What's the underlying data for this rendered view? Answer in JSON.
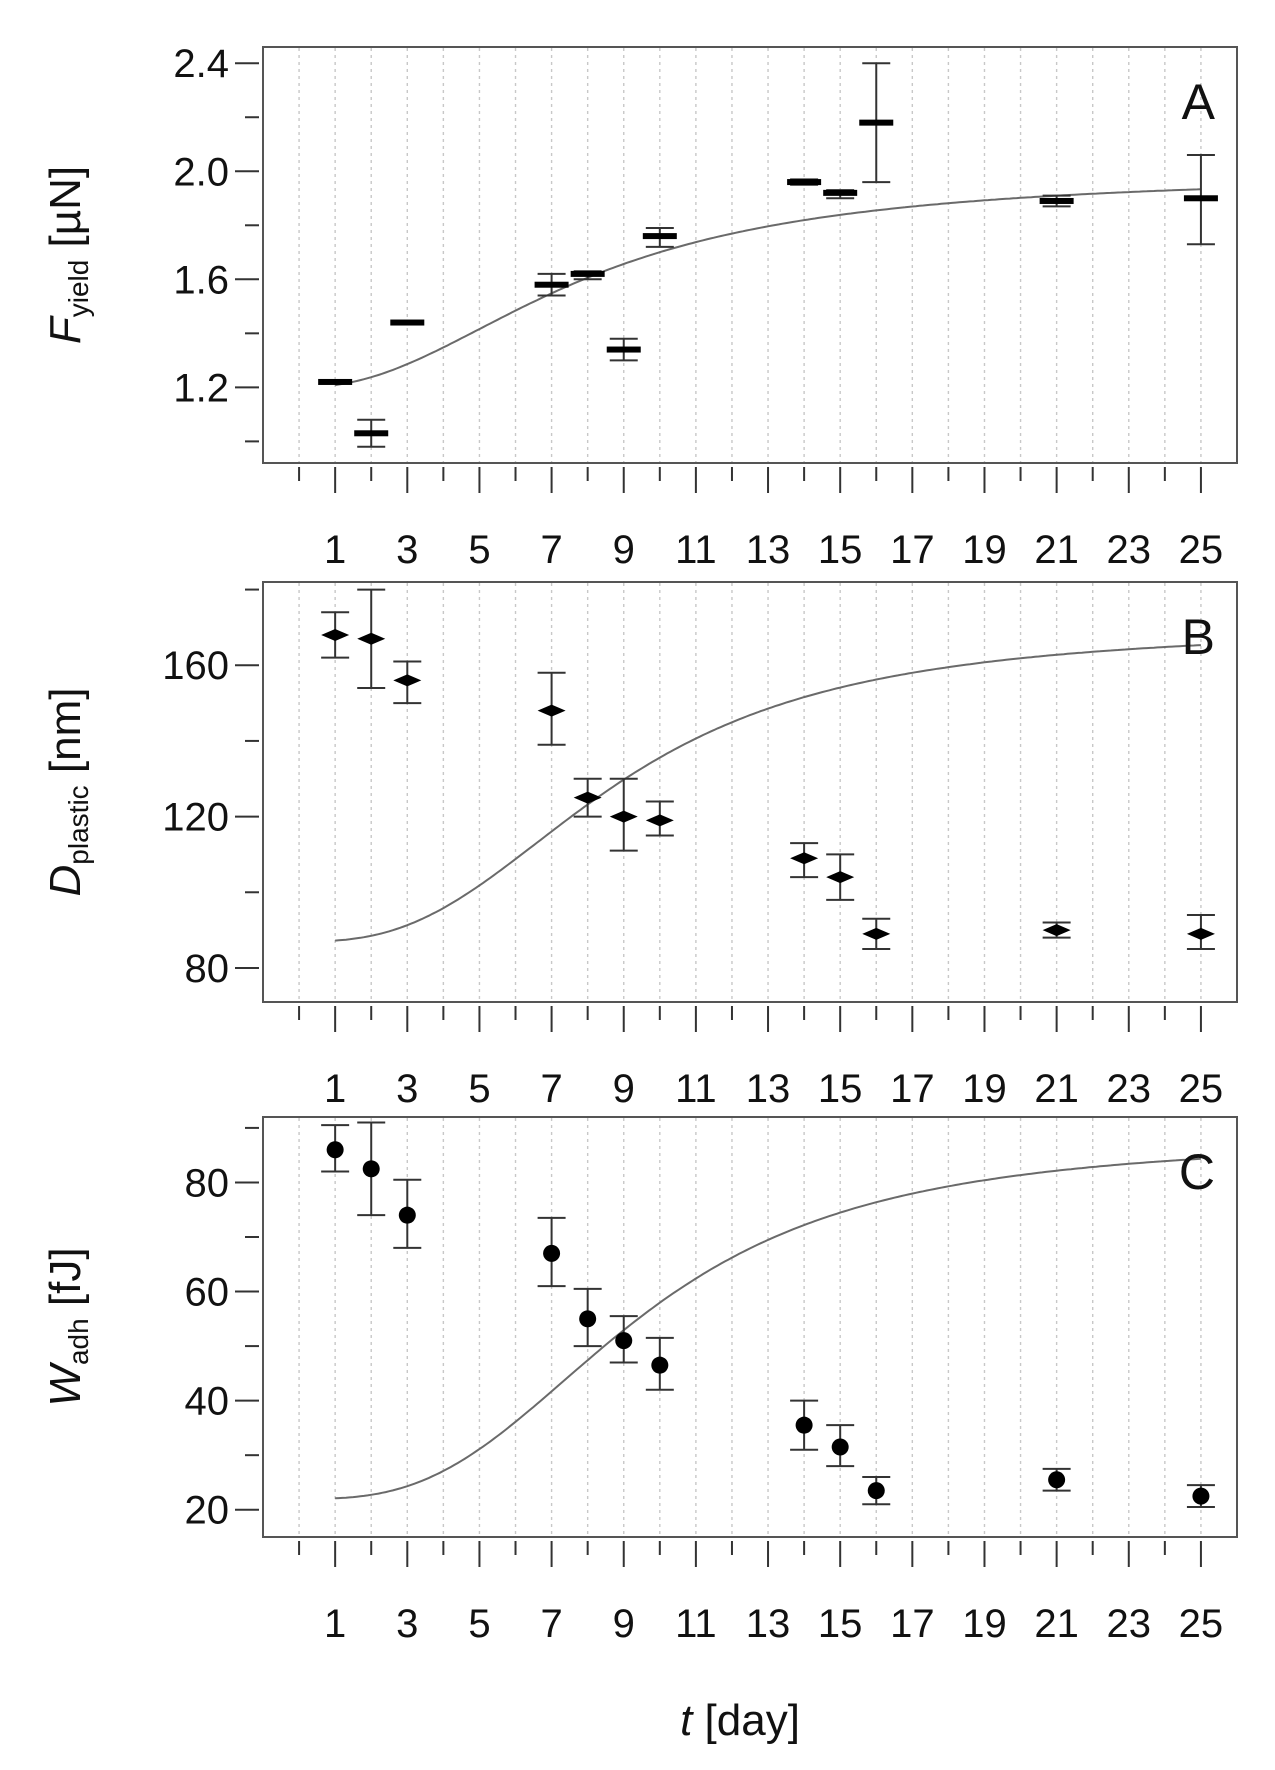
{
  "colors": {
    "grid": "#c8c8c8",
    "frame": "#555555",
    "curve": "#6a6a6a",
    "marker": "#000000"
  },
  "figure": {
    "shared_xlabel_var": "t",
    "shared_xlabel_unit": " [day]"
  },
  "chart_data": [
    {
      "id": "A",
      "type": "scatter",
      "panel_letter": "A",
      "marker": "dash",
      "ylabel_var": "F",
      "ylabel_sub": "yield",
      "ylabel_unit": " [µN]",
      "xlabel": "t [day]",
      "xlim": [
        -1,
        26
      ],
      "ylim": [
        0.92,
        2.46
      ],
      "yticks": [
        1.2,
        1.6,
        2.0,
        2.4
      ],
      "ytick_labels": [
        "1.2",
        "1.6",
        "2.0",
        "2.4"
      ],
      "yminor": [
        1.0,
        1.4,
        1.8,
        2.2
      ],
      "xticks": [
        1,
        3,
        5,
        7,
        9,
        11,
        13,
        15,
        17,
        19,
        21,
        23,
        25
      ],
      "xtick_labels": [
        "1",
        "3",
        "5",
        "7",
        "9",
        "11",
        "13",
        "15",
        "17",
        "19",
        "21",
        "23",
        "25"
      ],
      "x": [
        1,
        2,
        3,
        7,
        8,
        9,
        10,
        14,
        15,
        16,
        21,
        25
      ],
      "y": [
        1.22,
        1.03,
        1.44,
        1.58,
        1.62,
        1.34,
        1.76,
        1.96,
        1.92,
        2.18,
        1.89,
        1.9
      ],
      "err_low": [
        1.22,
        0.98,
        1.44,
        1.54,
        1.6,
        1.3,
        1.72,
        1.95,
        1.9,
        1.96,
        1.87,
        1.73
      ],
      "err_high": [
        1.22,
        1.08,
        1.44,
        1.62,
        1.63,
        1.38,
        1.79,
        1.97,
        1.93,
        2.4,
        1.91,
        2.06
      ],
      "fit": {
        "bottom": 1.2,
        "top": 1.99,
        "x50": 7.8,
        "slope": 2.2
      }
    },
    {
      "id": "B",
      "type": "scatter",
      "panel_letter": "B",
      "marker": "diamond",
      "ylabel_var": "D",
      "ylabel_sub": "plastic",
      "ylabel_unit": " [nm]",
      "xlabel": "t [day]",
      "xlim": [
        -1,
        26
      ],
      "ylim": [
        71,
        182
      ],
      "yticks": [
        80,
        120,
        160
      ],
      "ytick_labels": [
        "80",
        "120",
        "160"
      ],
      "yminor": [
        100,
        140,
        180
      ],
      "xticks": [
        1,
        3,
        5,
        7,
        9,
        11,
        13,
        15,
        17,
        19,
        21,
        23,
        25
      ],
      "xtick_labels": [
        "1",
        "3",
        "5",
        "7",
        "9",
        "11",
        "13",
        "15",
        "17",
        "19",
        "21",
        "23",
        "25"
      ],
      "x": [
        1,
        2,
        3,
        7,
        8,
        9,
        10,
        14,
        15,
        16,
        21,
        25
      ],
      "y": [
        168,
        167,
        156,
        148,
        125,
        120,
        119,
        109,
        104,
        89,
        90,
        89
      ],
      "err_low": [
        162,
        154,
        150,
        139,
        120,
        111,
        115,
        104,
        98,
        85,
        88,
        85
      ],
      "err_high": [
        174,
        180,
        161,
        158,
        130,
        130,
        124,
        113,
        110,
        93,
        92,
        94
      ],
      "fit": {
        "bottom": 87,
        "top": 170,
        "x50": 8.8,
        "slope": 2.7
      }
    },
    {
      "id": "C",
      "type": "scatter",
      "panel_letter": "C",
      "marker": "circle",
      "ylabel_var": "W",
      "ylabel_sub": "adh",
      "ylabel_unit": " [fJ]",
      "xlabel": "t [day]",
      "xlim": [
        -1,
        26
      ],
      "ylim": [
        15,
        92
      ],
      "yticks": [
        20,
        40,
        60,
        80
      ],
      "ytick_labels": [
        "20",
        "40",
        "60",
        "80"
      ],
      "yminor": [
        30,
        50,
        70,
        90
      ],
      "xticks": [
        1,
        3,
        5,
        7,
        9,
        11,
        13,
        15,
        17,
        19,
        21,
        23,
        25
      ],
      "xtick_labels": [
        "1",
        "3",
        "5",
        "7",
        "9",
        "11",
        "13",
        "15",
        "17",
        "19",
        "21",
        "23",
        "25"
      ],
      "x": [
        1,
        2,
        3,
        7,
        8,
        9,
        10,
        14,
        15,
        16,
        21,
        25
      ],
      "y": [
        86,
        82.5,
        74,
        67,
        55,
        51,
        46.5,
        35.5,
        31.5,
        23.5,
        25.5,
        22.5
      ],
      "err_low": [
        82,
        74,
        68,
        61,
        50,
        47,
        42,
        31,
        28,
        21,
        23.5,
        20.5
      ],
      "err_high": [
        90.5,
        91,
        80.5,
        73.5,
        60.5,
        55.5,
        51.5,
        40,
        35.5,
        26,
        27.5,
        24.5
      ],
      "fit": {
        "bottom": 22,
        "top": 88,
        "x50": 9.4,
        "slope": 2.9
      }
    }
  ]
}
